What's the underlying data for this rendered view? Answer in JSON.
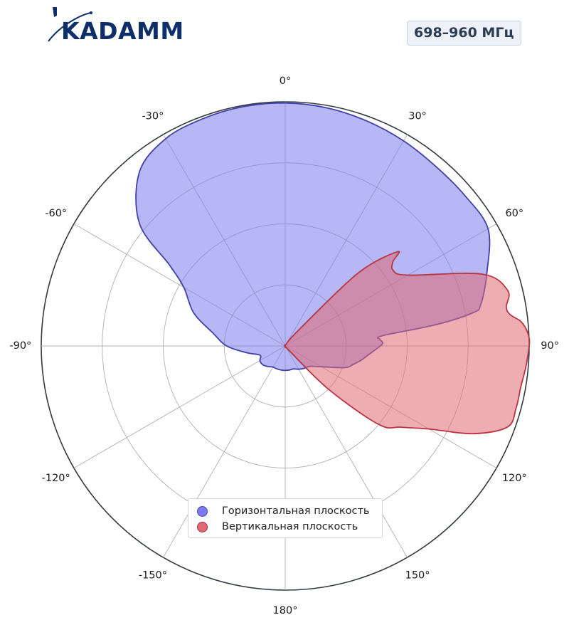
{
  "logo": {
    "text": "KADAMM"
  },
  "band_badge": "698–960 МГц",
  "colors": {
    "horizontal": "#7b7bef",
    "vertical": "#e06a73"
  },
  "chart_data": {
    "type": "polar",
    "angle_ticks": [
      "0°",
      "30°",
      "60°",
      "90°",
      "120°",
      "150°",
      "180°",
      "-150°",
      "-120°",
      "-90°",
      "-60°",
      "-30°"
    ],
    "radial_max": 1.0,
    "radial_grid": [
      0.25,
      0.5,
      0.75,
      1.0
    ],
    "series": [
      {
        "name": "Горизонтальная плоскость",
        "theta": [
          0,
          10,
          20,
          30,
          40,
          50,
          60,
          70,
          78,
          80,
          82,
          84,
          86,
          88,
          90,
          95,
          100,
          105,
          110,
          120,
          130,
          140,
          150,
          160,
          170,
          180,
          -170,
          -160,
          -150,
          -140,
          -130,
          -120,
          -110,
          -100,
          -90,
          -80,
          -70,
          -60,
          -55,
          -50,
          -40,
          -30,
          -20,
          -10
        ],
        "r": [
          0.995,
          0.99,
          0.98,
          0.97,
          0.96,
          0.96,
          0.96,
          0.88,
          0.82,
          0.78,
          0.62,
          0.4,
          0.39,
          0.4,
          0.39,
          0.35,
          0.32,
          0.29,
          0.26,
          0.17,
          0.13,
          0.12,
          0.11,
          0.1,
          0.1,
          0.1,
          0.1,
          0.1,
          0.1,
          0.11,
          0.12,
          0.12,
          0.11,
          0.16,
          0.24,
          0.3,
          0.4,
          0.48,
          0.58,
          0.78,
          0.93,
          0.98,
          0.99,
          0.995
        ]
      },
      {
        "name": "Вертикальная плоскость",
        "theta": [
          0,
          20,
          40,
          45,
          50,
          52,
          55,
          60,
          70,
          76,
          80,
          82,
          84,
          86,
          88,
          90,
          95,
          100,
          105,
          110,
          115,
          120,
          125,
          130,
          135,
          140,
          150,
          170,
          180
        ],
        "r": [
          0.005,
          0.005,
          0.08,
          0.42,
          0.6,
          0.56,
          0.54,
          0.58,
          0.86,
          0.94,
          0.92,
          0.93,
          0.97,
          0.99,
          1.0,
          1.0,
          0.99,
          0.98,
          0.98,
          0.97,
          0.85,
          0.68,
          0.58,
          0.5,
          0.25,
          0.02,
          0.005,
          0.005,
          0.005
        ]
      }
    ],
    "legend_position": "lower center"
  }
}
